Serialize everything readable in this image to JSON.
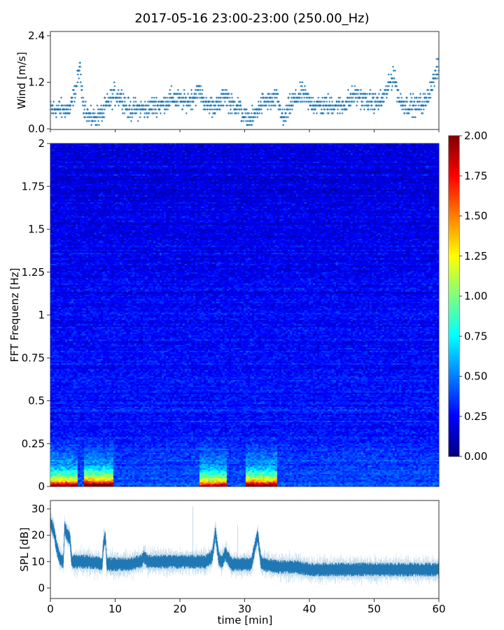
{
  "title": "2017-05-16 23:00-23:00 (250.00_Hz)",
  "chart_data": [
    {
      "type": "scatter",
      "panel": "wind",
      "ylabel": "Wind [m/s]",
      "xlim": [
        0,
        60
      ],
      "ylim": [
        0,
        2.5
      ],
      "yticks": [
        "0.0",
        "1.2",
        "2.4"
      ],
      "marker": "+",
      "color": "#1f77b4",
      "x": [
        0,
        1,
        2,
        3,
        4,
        4.5,
        5,
        6,
        7,
        8,
        9,
        10,
        11,
        12,
        13,
        14,
        15,
        16,
        17,
        18,
        19,
        20,
        21,
        22,
        23,
        24,
        25,
        26,
        27,
        28,
        29,
        30,
        31,
        32,
        33,
        34,
        35,
        36,
        37,
        38,
        39,
        40,
        41,
        42,
        43,
        44,
        45,
        46,
        47,
        48,
        49,
        50,
        51,
        52,
        53,
        54,
        55,
        56,
        57,
        58,
        59,
        60
      ],
      "y": [
        0.5,
        0.5,
        0.5,
        0.5,
        1.1,
        1.6,
        0.7,
        0.3,
        0.3,
        0.4,
        0.7,
        0.9,
        0.8,
        0.5,
        0.5,
        0.5,
        0.5,
        0.6,
        0.6,
        0.7,
        0.8,
        0.7,
        0.7,
        0.8,
        1.0,
        0.6,
        0.6,
        0.6,
        0.9,
        0.6,
        0.6,
        0.3,
        0.2,
        0.5,
        0.7,
        0.7,
        0.8,
        0.2,
        0.6,
        0.8,
        0.9,
        0.7,
        0.6,
        0.6,
        0.6,
        0.6,
        0.6,
        0.7,
        0.9,
        0.8,
        0.7,
        0.7,
        0.7,
        1.0,
        1.4,
        0.7,
        0.6,
        0.6,
        0.6,
        0.7,
        1.2,
        1.6
      ]
    },
    {
      "type": "heatmap",
      "panel": "spectrogram",
      "ylabel": "FFT Frequenz [Hz]",
      "xlim": [
        0,
        60
      ],
      "ylim": [
        0,
        2
      ],
      "yticks": [
        "0",
        "0.25",
        "0.5",
        "0.75",
        "1",
        "1.25",
        "1.5",
        "1.75",
        "2"
      ],
      "colormap": "jet",
      "colorbar": {
        "range": [
          0,
          2
        ],
        "ticks": [
          "0.00",
          "0.25",
          "0.50",
          "0.75",
          "1.00",
          "1.25",
          "1.50",
          "1.75",
          "2.00"
        ]
      },
      "background_level": 0.25,
      "low_frequency_energy": [
        {
          "t_start": 0,
          "t_end": 4,
          "level": 1.6
        },
        {
          "t_start": 5,
          "t_end": 9.5,
          "level": 1.9
        },
        {
          "t_start": 23,
          "t_end": 27,
          "level": 1.5
        },
        {
          "t_start": 30,
          "t_end": 35,
          "level": 1.7
        }
      ]
    },
    {
      "type": "line",
      "panel": "spl",
      "ylabel": "SPL [dB]",
      "xlabel": "time [min]",
      "xlim": [
        0,
        60
      ],
      "ylim": [
        -4,
        33
      ],
      "xticks": [
        "0",
        "10",
        "20",
        "30",
        "40",
        "50",
        "60"
      ],
      "yticks": [
        "0",
        "10",
        "20",
        "30"
      ],
      "color": "#1f77b4",
      "x": [
        0,
        0.5,
        1,
        1.5,
        2,
        2.2,
        2.6,
        3,
        3.3,
        4,
        6,
        8,
        8.2,
        8.5,
        8.7,
        10,
        12,
        14,
        14.5,
        15,
        18,
        20,
        22,
        24,
        25,
        25.5,
        26,
        26.5,
        27,
        28,
        30,
        31,
        32,
        32.5,
        33,
        35,
        38,
        40,
        45,
        50,
        55,
        60
      ],
      "y": [
        25,
        22,
        15,
        11,
        10,
        23,
        20,
        19,
        10,
        10,
        10,
        9,
        17,
        19,
        9,
        9,
        9,
        10,
        12,
        10,
        10,
        10,
        10,
        10,
        12,
        21,
        11,
        10,
        13,
        9,
        9,
        9,
        20,
        10,
        9,
        8,
        8,
        7,
        7,
        7,
        7,
        7
      ]
    }
  ]
}
